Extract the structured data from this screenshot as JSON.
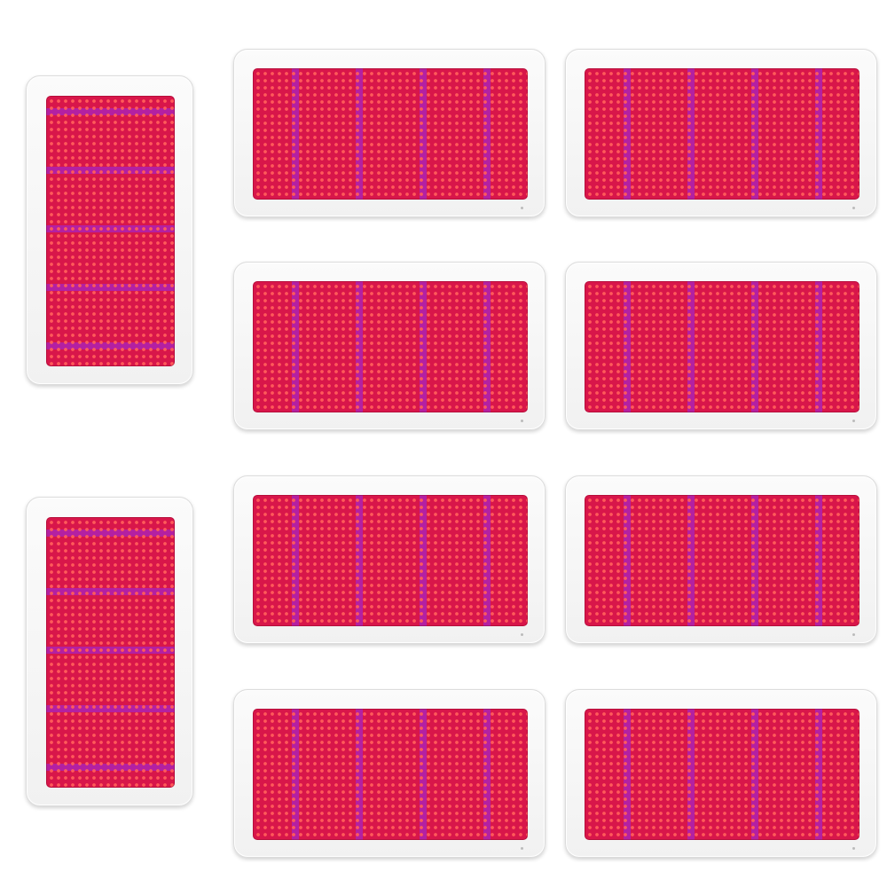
{
  "colors": {
    "panel_frame": "#f4f4f4",
    "led_base": "#d8164a",
    "red_led": "#ff5a5a",
    "blue_strip": "rgba(150,40,235,0.55)",
    "background": "#ffffff"
  },
  "panels": [
    {
      "id": "panel-left-top",
      "orientation": "portrait"
    },
    {
      "id": "panel-left-bottom",
      "orientation": "portrait"
    },
    {
      "id": "panel-r1-c1",
      "orientation": "landscape"
    },
    {
      "id": "panel-r1-c2",
      "orientation": "landscape"
    },
    {
      "id": "panel-r2-c1",
      "orientation": "landscape"
    },
    {
      "id": "panel-r2-c2",
      "orientation": "landscape"
    },
    {
      "id": "panel-r3-c1",
      "orientation": "landscape"
    },
    {
      "id": "panel-r3-c2",
      "orientation": "landscape"
    },
    {
      "id": "panel-r4-c1",
      "orientation": "landscape"
    },
    {
      "id": "panel-r4-c2",
      "orientation": "landscape"
    }
  ]
}
